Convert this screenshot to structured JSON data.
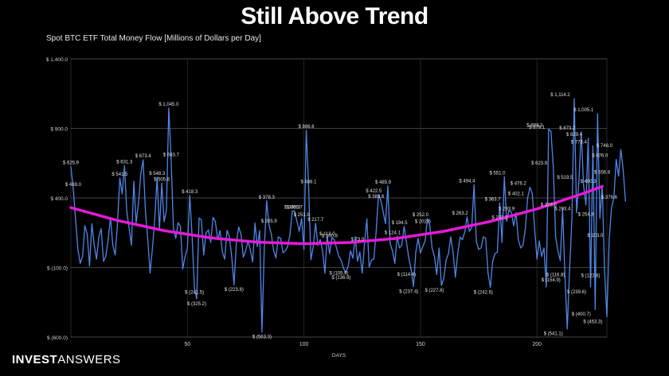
{
  "headline": "Still Above Trend",
  "brand": {
    "part1": "INVEST",
    "part2": "ANSWERS"
  },
  "colors": {
    "series": "#4f86e8",
    "trend": "#e619d8",
    "grid": "#2e2e2e",
    "text": "#cfcfcf"
  },
  "chart_data": {
    "type": "line",
    "title": "Spot BTC ETF Total Money Flow [Millions of Dollars per Day]",
    "xlabel": "DAYS",
    "ylabel": "",
    "xlim": [
      0,
      230
    ],
    "ylim": [
      -600,
      1400
    ],
    "xticks": [
      50,
      100,
      150,
      200
    ],
    "yticks": [
      {
        "value": 1400,
        "label": "$ 1,400.0"
      },
      {
        "value": 900,
        "label": "$ 900.0"
      },
      {
        "value": 400,
        "label": "$ 400.0"
      },
      {
        "value": -100,
        "label": "$ (100.0)"
      },
      {
        "value": -600,
        "label": "$ (600.0)"
      }
    ],
    "grid": true,
    "series": [
      {
        "values": [
          625.9,
          469.0,
          250,
          30.3,
          -70,
          -20,
          200,
          140,
          -90,
          214.4,
          65,
          -40,
          120,
          180,
          -55,
          -20,
          100,
          260,
          60,
          -10,
          215,
          541.5,
          430,
          631.3,
          300,
          180,
          60,
          519,
          222,
          360,
          573,
          673.4,
          300,
          100,
          -140,
          40,
          250,
          548.3,
          170,
          505.6,
          230,
          310,
          1045.0,
          683.7,
          180,
          110,
          222,
          195.5,
          -110,
          -20,
          40,
          418.3,
          130,
          -241.5,
          -325.2,
          255,
          242,
          -10,
          150,
          170,
          80,
          260,
          230,
          100,
          165,
          12,
          -40,
          167,
          122.7,
          -20,
          -223.8,
          75,
          191,
          140,
          -25,
          20,
          90,
          25,
          -60,
          219,
          50,
          165,
          -563.3,
          40,
          378.3,
          205.9,
          140,
          20,
          -30,
          120,
          110,
          6,
          20,
          50,
          135,
          305.3,
          305.7,
          233,
          160,
          251.9,
          30,
          886.6,
          488.1,
          -45,
          50,
          217.7,
          60,
          100,
          20,
          -140,
          128.3,
          0,
          113.0,
          100.8,
          40,
          -20,
          -50,
          -105.9,
          -136.9,
          -90,
          20,
          -32.6,
          120,
          -54.7,
          10,
          -140,
          73.0,
          250,
          -96.9,
          -48.4,
          -37.5,
          160,
          422.5,
          383.6,
          300,
          216,
          485.9,
          70,
          20,
          -70,
          124.1,
          40,
          60,
          194.5,
          80,
          -30,
          -114.4,
          -237.4,
          10,
          110,
          4,
          50,
          90,
          252.0,
          202.6,
          40,
          -20,
          -150,
          40,
          -227.8,
          -180,
          -48,
          -2,
          120,
          10,
          -170,
          0,
          117,
          100,
          155,
          263.2,
          160,
          186.8,
          494.4,
          85,
          30,
          40,
          120,
          110,
          -140,
          -242.6,
          -55,
          0,
          10,
          363.7,
          80,
          551.0,
          232.2,
          310,
          300,
          200,
          293.9,
          100,
          40,
          60,
          177,
          402.1,
          476.2,
          430,
          180,
          -40,
          90,
          -20,
          40,
          -240,
          893.3,
          879.1,
          623.9,
          120,
          20,
          -50,
          323,
          -154.9,
          -541.1,
          -116.8,
          250,
          1114.2,
          293.4,
          519.5,
          873.2,
          490,
          350,
          829.4,
          -239.6,
          773.4,
          -400.7,
          1005.1,
          254.8,
          490.3,
          -122.8,
          -453.3,
          103.0,
          330,
          400,
          676.0,
          556.8,
          748.0,
          600,
          376.6
        ]
      }
    ],
    "trend": {
      "x": [
        0,
        20,
        40,
        60,
        80,
        100,
        120,
        140,
        160,
        180,
        200,
        220,
        228
      ],
      "y": [
        330,
        238,
        165,
        113,
        82,
        71,
        80,
        110,
        160,
        231,
        321,
        433,
        483
      ]
    },
    "annotations": [
      {
        "x": 0,
        "y": 625.9,
        "label": "$ 625.9"
      },
      {
        "x": 1,
        "y": 469.0,
        "label": "$ 469.0"
      },
      {
        "x": 42,
        "y": 1045.0,
        "label": "$ 1,045.0"
      },
      {
        "x": 23,
        "y": 631.3,
        "label": "$ 631.3"
      },
      {
        "x": 31,
        "y": 673.4,
        "label": "$ 673.4"
      },
      {
        "x": 43,
        "y": 683.7,
        "label": "$ 683.7"
      },
      {
        "x": 21,
        "y": 541.5,
        "label": "$ 541.5"
      },
      {
        "x": 37,
        "y": 548.3,
        "label": "$ 548.3"
      },
      {
        "x": 39,
        "y": 505.6,
        "label": "$ 505.6"
      },
      {
        "x": 51,
        "y": 418.3,
        "label": "$ 418.3"
      },
      {
        "x": 53,
        "y": -241.5,
        "label": "$ (241.5)"
      },
      {
        "x": 54,
        "y": -325.2,
        "label": "$ (325.2)"
      },
      {
        "x": 70,
        "y": -223.8,
        "label": "$ (223.8)"
      },
      {
        "x": 82,
        "y": -563.3,
        "label": "$ (563.3)"
      },
      {
        "x": 84,
        "y": 378.3,
        "label": "$ 378.3"
      },
      {
        "x": 85,
        "y": 205.9,
        "label": "$ 205.9"
      },
      {
        "x": 95,
        "y": 305.3,
        "label": "$ 305.3"
      },
      {
        "x": 96,
        "y": 305.7,
        "label": "$ 305.7"
      },
      {
        "x": 99,
        "y": 251.9,
        "label": "$ 251.9"
      },
      {
        "x": 101,
        "y": 886.6,
        "label": "$ 886.6"
      },
      {
        "x": 102,
        "y": 488.1,
        "label": "$ 488.1"
      },
      {
        "x": 105,
        "y": 217.7,
        "label": "$ 217.7"
      },
      {
        "x": 110,
        "y": 113.0,
        "label": "$ 113.0"
      },
      {
        "x": 111,
        "y": 100.8,
        "label": "$ 100.8"
      },
      {
        "x": 115,
        "y": -105.9,
        "label": "$ (105.9)"
      },
      {
        "x": 116,
        "y": -136.9,
        "label": "$ (136.9)"
      },
      {
        "x": 123,
        "y": 73.0,
        "label": "$ 73.0"
      },
      {
        "x": 130,
        "y": 422.5,
        "label": "$ 422.5"
      },
      {
        "x": 131,
        "y": 383.6,
        "label": "$ 383.6"
      },
      {
        "x": 134,
        "y": 485.9,
        "label": "$ 485.9"
      },
      {
        "x": 138,
        "y": 124.1,
        "label": "$ 124.1"
      },
      {
        "x": 141,
        "y": 194.5,
        "label": "$ 194.5"
      },
      {
        "x": 144,
        "y": -114.4,
        "label": "$ (114.4)"
      },
      {
        "x": 145,
        "y": -237.4,
        "label": "$ (237.4)"
      },
      {
        "x": 150,
        "y": 252.0,
        "label": "$ 252.0"
      },
      {
        "x": 151,
        "y": 202.6,
        "label": "$ 202.6"
      },
      {
        "x": 156,
        "y": -227.8,
        "label": "$ (227.8)"
      },
      {
        "x": 167,
        "y": 263.2,
        "label": "$ 263.2"
      },
      {
        "x": 170,
        "y": 494.4,
        "label": "$ 494.4"
      },
      {
        "x": 177,
        "y": -242.6,
        "label": "$ (242.6)"
      },
      {
        "x": 181,
        "y": 363.7,
        "label": "$ 363.7"
      },
      {
        "x": 183,
        "y": 551.0,
        "label": "$ 551.0"
      },
      {
        "x": 184,
        "y": 232.2,
        "label": "$ 232.2"
      },
      {
        "x": 187,
        "y": 293.9,
        "label": "$ 293.9"
      },
      {
        "x": 191,
        "y": 402.1,
        "label": "$ 402.1"
      },
      {
        "x": 192,
        "y": 476.2,
        "label": "$ 476.2"
      },
      {
        "x": 199,
        "y": 893.3,
        "label": "$ 893.3"
      },
      {
        "x": 200,
        "y": 879.1,
        "label": "$ 879.1"
      },
      {
        "x": 201,
        "y": 623.9,
        "label": "$ 623.9"
      },
      {
        "x": 205,
        "y": 323.0,
        "label": "$ 323.0"
      },
      {
        "x": 206,
        "y": -154.9,
        "label": "$ (154.9)"
      },
      {
        "x": 207,
        "y": -541.1,
        "label": "$ (541.1)"
      },
      {
        "x": 208,
        "y": -116.8,
        "label": "$ (116.8)"
      },
      {
        "x": 210,
        "y": 1114.2,
        "label": "$ 1,114.2"
      },
      {
        "x": 211,
        "y": 293.4,
        "label": "$ 293.4"
      },
      {
        "x": 212,
        "y": 519.5,
        "label": "$ 519.5"
      },
      {
        "x": 213,
        "y": 873.2,
        "label": "$ 873.2"
      },
      {
        "x": 216,
        "y": 829.4,
        "label": "$ 829.4"
      },
      {
        "x": 217,
        "y": -239.6,
        "label": "$ (239.6)"
      },
      {
        "x": 218,
        "y": 773.4,
        "label": "$ 773.4"
      },
      {
        "x": 219,
        "y": -400.7,
        "label": "$ (400.7)"
      },
      {
        "x": 220,
        "y": 1005.1,
        "label": "$ 1,005.1"
      },
      {
        "x": 221,
        "y": 254.8,
        "label": "$ 254.8"
      },
      {
        "x": 222,
        "y": 490.3,
        "label": "$ 490.3"
      },
      {
        "x": 223,
        "y": -122.8,
        "label": "$ (122.8)"
      },
      {
        "x": 224,
        "y": -453.3,
        "label": "$ (453.3)"
      },
      {
        "x": 225,
        "y": 103.0,
        "label": "$ 103.0"
      },
      {
        "x": 227,
        "y": 676.0,
        "label": "$ 676.0"
      },
      {
        "x": 228,
        "y": 556.8,
        "label": "$ 556.8"
      },
      {
        "x": 229,
        "y": 748.0,
        "label": "$ 748.0"
      },
      {
        "x": 231,
        "y": 376.6,
        "label": "$ 376.6"
      }
    ]
  }
}
